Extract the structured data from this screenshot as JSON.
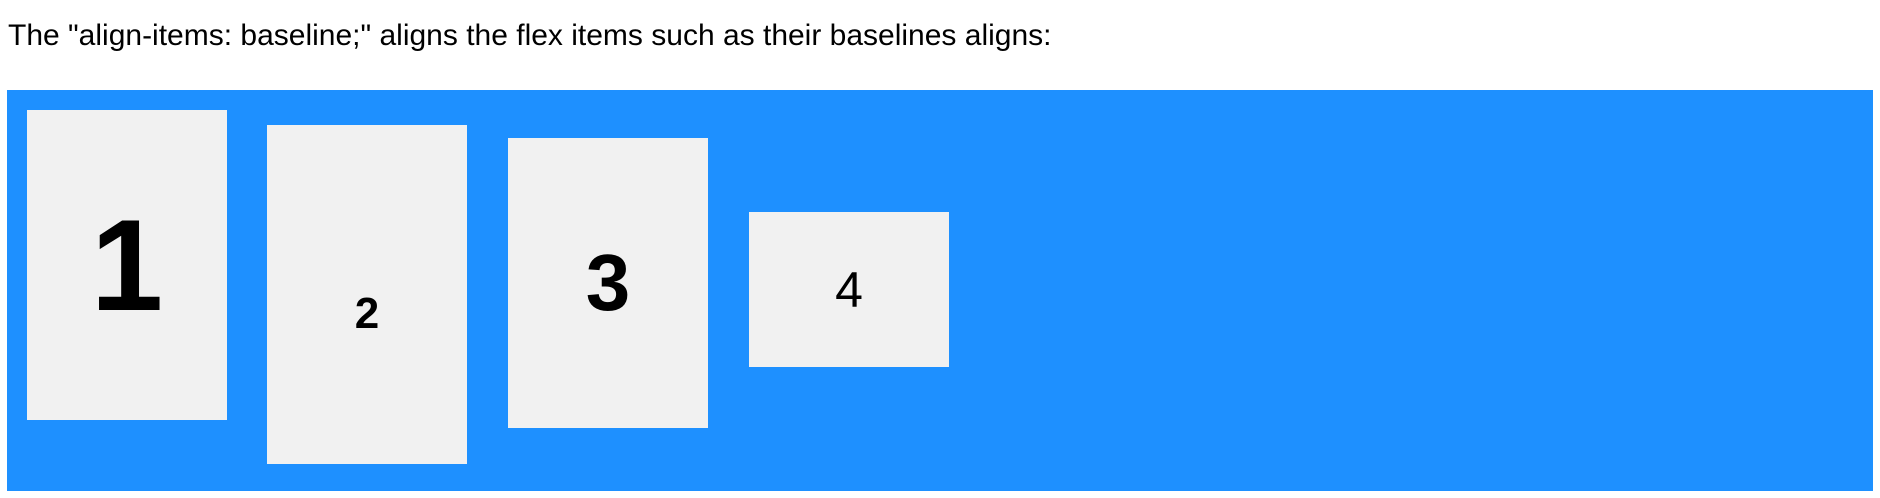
{
  "intro": {
    "text": "The \"align-items: baseline;\" aligns the flex items such as their baselines aligns:"
  },
  "flex_demo": {
    "container_color": "#1e90ff",
    "item_color": "#f1f1f1",
    "items": [
      {
        "label": "1"
      },
      {
        "label": "2"
      },
      {
        "label": "3"
      },
      {
        "label": "4"
      }
    ]
  }
}
